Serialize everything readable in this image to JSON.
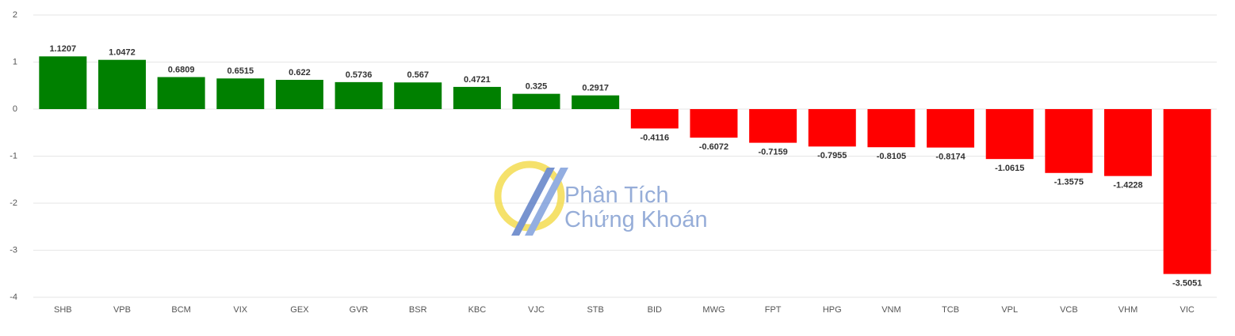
{
  "chart_data": {
    "type": "bar",
    "categories": [
      "SHB",
      "VPB",
      "BCM",
      "VIX",
      "GEX",
      "GVR",
      "BSR",
      "KBC",
      "VJC",
      "STB",
      "BID",
      "MWG",
      "FPT",
      "HPG",
      "VNM",
      "TCB",
      "VPL",
      "VCB",
      "VHM",
      "VIC"
    ],
    "values": [
      1.1207,
      1.0472,
      0.6809,
      0.6515,
      0.622,
      0.5736,
      0.567,
      0.4721,
      0.325,
      0.2917,
      -0.4116,
      -0.6072,
      -0.7159,
      -0.7955,
      -0.8105,
      -0.8174,
      -1.0615,
      -1.3575,
      -1.4228,
      -3.5051
    ],
    "positive_color": "#008000",
    "negative_color": "#ff0000",
    "ylim": [
      -4,
      2
    ],
    "yticks": [
      2,
      1,
      0,
      -1,
      -2,
      -3,
      -4
    ],
    "grid": true,
    "watermark": [
      "Phân Tích",
      "Chứng Khoán"
    ]
  }
}
